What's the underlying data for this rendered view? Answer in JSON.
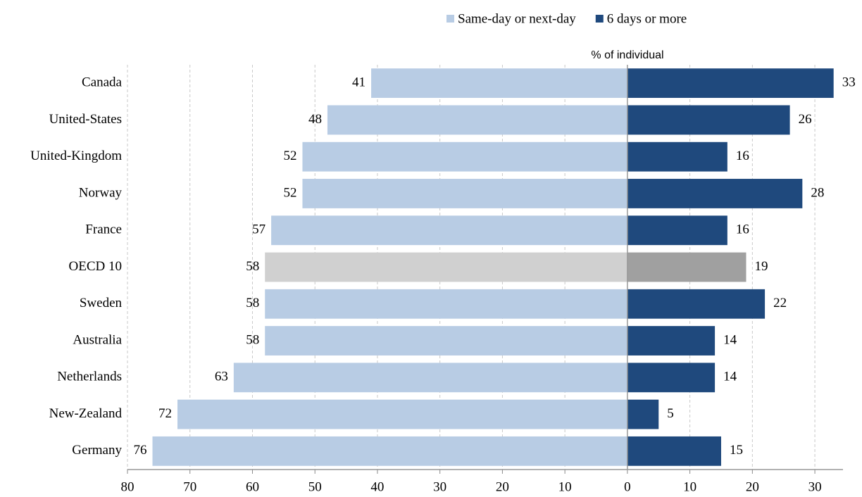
{
  "chart_data": {
    "type": "diverging-bar",
    "axis_label": "% of individual",
    "categories": [
      "Canada",
      "United-States",
      "United-Kingdom",
      "Norway",
      "France",
      "OECD 10",
      "Sweden",
      "Australia",
      "Netherlands",
      "New-Zealand",
      "Germany"
    ],
    "series": [
      {
        "name": "Same-day or next-day",
        "color": "#b8cce4",
        "side": "left",
        "colors": [
          "#b8cce4",
          "#b8cce4",
          "#b8cce4",
          "#b8cce4",
          "#b8cce4",
          "#d0d0d0",
          "#b8cce4",
          "#b8cce4",
          "#b8cce4",
          "#b8cce4",
          "#b8cce4"
        ],
        "values": [
          41,
          48,
          52,
          52,
          57,
          58,
          58,
          58,
          63,
          72,
          76
        ]
      },
      {
        "name": "6 days or more",
        "color": "#1f497d",
        "side": "right",
        "colors": [
          "#1f497d",
          "#1f497d",
          "#1f497d",
          "#1f497d",
          "#1f497d",
          "#a0a0a0",
          "#1f497d",
          "#1f497d",
          "#1f497d",
          "#1f497d",
          "#1f497d"
        ],
        "values": [
          33,
          26,
          16,
          28,
          16,
          19,
          22,
          14,
          14,
          5,
          15
        ]
      }
    ],
    "xlim": [
      -80,
      34.5
    ],
    "xticks": [
      {
        "value": -80,
        "label": "80"
      },
      {
        "value": -70,
        "label": "70"
      },
      {
        "value": -60,
        "label": "60"
      },
      {
        "value": -50,
        "label": "50"
      },
      {
        "value": -40,
        "label": "40"
      },
      {
        "value": -30,
        "label": "30"
      },
      {
        "value": -20,
        "label": "20"
      },
      {
        "value": -10,
        "label": "10"
      },
      0,
      10,
      20,
      30
    ],
    "grid": true,
    "legend": "top-right"
  }
}
